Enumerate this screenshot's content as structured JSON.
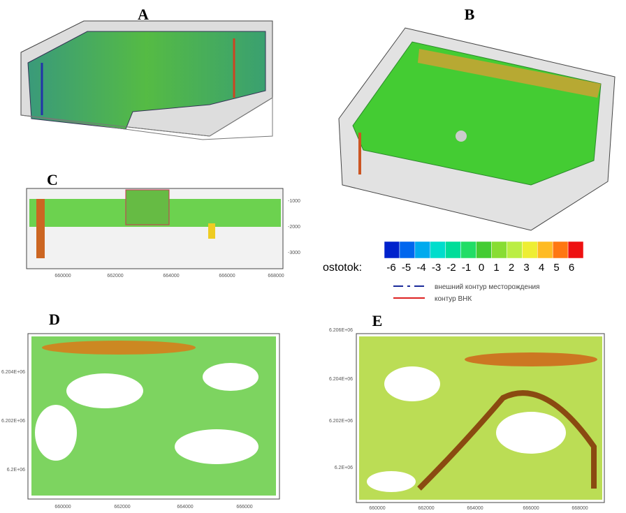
{
  "panels": {
    "a": {
      "label": "A"
    },
    "b": {
      "label": "B"
    },
    "c": {
      "label": "C",
      "xticks": [
        "660000",
        "662000",
        "664000",
        "666000",
        "668000"
      ],
      "yticks": [
        "-1000",
        "-2000",
        "-3000"
      ]
    },
    "d": {
      "label": "D",
      "xticks": [
        "660000",
        "662000",
        "664000",
        "666000"
      ],
      "yticks": [
        "6.204E+06",
        "6.202E+06",
        "6.2E+06"
      ]
    },
    "e": {
      "label": "E",
      "xticks": [
        "660000",
        "662000",
        "664000",
        "666000",
        "668000"
      ],
      "yticks": [
        "6.206E+06",
        "6.204E+06",
        "6.202E+06",
        "6.2E+06"
      ]
    }
  },
  "colorbar": {
    "label": "ostotok:",
    "ticks": [
      "-6",
      "-5",
      "-4",
      "-3",
      "-2",
      "-1",
      "0",
      "1",
      "2",
      "3",
      "4",
      "5",
      "6"
    ],
    "colors": [
      "#0022cc",
      "#0066ee",
      "#00aaee",
      "#00ddcc",
      "#00dd99",
      "#22dd66",
      "#44cc33",
      "#88dd33",
      "#bbee44",
      "#eeee33",
      "#ffbb22",
      "#ff7711",
      "#ee1111"
    ]
  },
  "legend": [
    {
      "text": "внешний контур месторождения",
      "color": "#1a2a9a"
    },
    {
      "text": "контур ВНК",
      "color": "#dd2222"
    }
  ]
}
